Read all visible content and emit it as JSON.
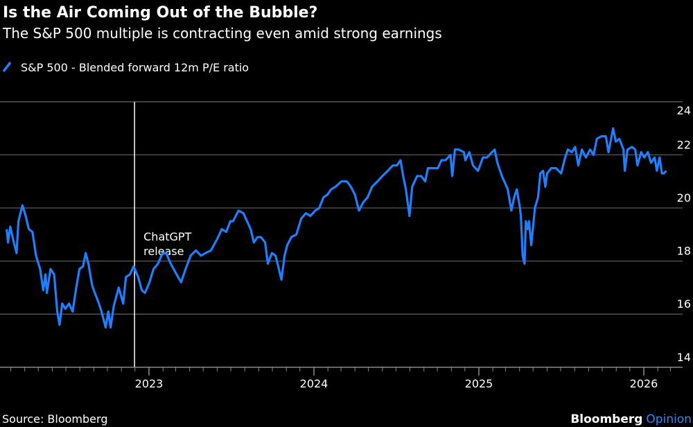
{
  "chart_data": {
    "type": "line",
    "title": "Is the Air Coming Out of the Bubble?",
    "subtitle": "The S&P 500 multiple is contracting even amid strong earnings",
    "ylim": [
      14,
      24
    ],
    "yticks": [
      "14",
      "16",
      "18",
      "20",
      "22",
      "24"
    ],
    "xticks": [
      "2023",
      "2024",
      "2025",
      "2026"
    ],
    "grid": true,
    "y_axis_side": "right",
    "legend_placement": "top-left",
    "annotation": {
      "date": "2022-11-30",
      "label_line1": "ChatGPT",
      "label_line2": "release"
    },
    "series": [
      {
        "name": "S&P 500 - Blended forward 12m P/E ratio",
        "color": "#1f7fff",
        "points": [
          [
            "2022-02-20",
            19.2
          ],
          [
            "2022-02-23",
            18.7
          ],
          [
            "2022-02-28",
            19.3
          ],
          [
            "2022-03-08",
            18.7
          ],
          [
            "2022-03-14",
            18.3
          ],
          [
            "2022-03-18",
            19.5
          ],
          [
            "2022-03-27",
            20.1
          ],
          [
            "2022-04-03",
            19.7
          ],
          [
            "2022-04-10",
            19.2
          ],
          [
            "2022-04-18",
            19.1
          ],
          [
            "2022-04-26",
            18.2
          ],
          [
            "2022-05-05",
            17.7
          ],
          [
            "2022-05-12",
            16.9
          ],
          [
            "2022-05-17",
            17.5
          ],
          [
            "2022-05-20",
            16.8
          ],
          [
            "2022-05-28",
            17.7
          ],
          [
            "2022-06-05",
            17.5
          ],
          [
            "2022-06-12",
            16.1
          ],
          [
            "2022-06-17",
            15.6
          ],
          [
            "2022-06-23",
            16.4
          ],
          [
            "2022-06-30",
            16.2
          ],
          [
            "2022-07-08",
            16.4
          ],
          [
            "2022-07-16",
            16.1
          ],
          [
            "2022-07-23",
            16.9
          ],
          [
            "2022-07-31",
            17.7
          ],
          [
            "2022-08-08",
            17.8
          ],
          [
            "2022-08-14",
            18.3
          ],
          [
            "2022-08-20",
            17.9
          ],
          [
            "2022-08-28",
            17.1
          ],
          [
            "2022-09-03",
            16.8
          ],
          [
            "2022-09-10",
            16.5
          ],
          [
            "2022-09-18",
            16.1
          ],
          [
            "2022-09-27",
            15.5
          ],
          [
            "2022-10-03",
            16.1
          ],
          [
            "2022-10-08",
            15.5
          ],
          [
            "2022-10-15",
            16.3
          ],
          [
            "2022-10-26",
            17.0
          ],
          [
            "2022-11-05",
            16.4
          ],
          [
            "2022-11-11",
            17.4
          ],
          [
            "2022-11-20",
            17.5
          ],
          [
            "2022-11-28",
            17.8
          ],
          [
            "2022-12-08",
            17.4
          ],
          [
            "2022-12-16",
            16.9
          ],
          [
            "2022-12-23",
            16.8
          ],
          [
            "2023-01-02",
            17.2
          ],
          [
            "2023-01-11",
            17.7
          ],
          [
            "2023-01-21",
            17.9
          ],
          [
            "2023-01-31",
            18.3
          ],
          [
            "2023-02-08",
            18.3
          ],
          [
            "2023-02-18",
            17.9
          ],
          [
            "2023-03-03",
            17.5
          ],
          [
            "2023-03-13",
            17.2
          ],
          [
            "2023-03-23",
            17.7
          ],
          [
            "2023-04-03",
            18.2
          ],
          [
            "2023-04-15",
            18.4
          ],
          [
            "2023-04-26",
            18.2
          ],
          [
            "2023-05-06",
            18.3
          ],
          [
            "2023-05-18",
            18.4
          ],
          [
            "2023-05-31",
            18.8
          ],
          [
            "2023-06-11",
            19.2
          ],
          [
            "2023-06-21",
            19.1
          ],
          [
            "2023-06-30",
            19.5
          ],
          [
            "2023-07-06",
            19.5
          ],
          [
            "2023-07-18",
            19.9
          ],
          [
            "2023-07-29",
            19.8
          ],
          [
            "2023-08-06",
            19.5
          ],
          [
            "2023-08-14",
            19.2
          ],
          [
            "2023-08-21",
            18.7
          ],
          [
            "2023-08-29",
            18.9
          ],
          [
            "2023-09-06",
            18.9
          ],
          [
            "2023-09-15",
            18.7
          ],
          [
            "2023-09-21",
            17.9
          ],
          [
            "2023-09-30",
            18.3
          ],
          [
            "2023-10-08",
            18.2
          ],
          [
            "2023-10-14",
            17.8
          ],
          [
            "2023-10-21",
            17.3
          ],
          [
            "2023-10-28",
            18.2
          ],
          [
            "2023-11-03",
            18.6
          ],
          [
            "2023-11-12",
            18.9
          ],
          [
            "2023-11-23",
            19.0
          ],
          [
            "2023-12-04",
            19.6
          ],
          [
            "2023-12-14",
            19.8
          ],
          [
            "2023-12-24",
            19.7
          ],
          [
            "2024-01-04",
            19.9
          ],
          [
            "2024-01-13",
            20.0
          ],
          [
            "2024-01-22",
            20.4
          ],
          [
            "2024-01-31",
            20.5
          ],
          [
            "2024-02-08",
            20.7
          ],
          [
            "2024-02-18",
            20.8
          ],
          [
            "2024-03-02",
            21.0
          ],
          [
            "2024-03-14",
            21.0
          ],
          [
            "2024-03-23",
            20.8
          ],
          [
            "2024-04-01",
            20.5
          ],
          [
            "2024-04-10",
            19.9
          ],
          [
            "2024-04-19",
            20.2
          ],
          [
            "2024-04-29",
            20.4
          ],
          [
            "2024-05-09",
            20.8
          ],
          [
            "2024-05-21",
            21.0
          ],
          [
            "2024-06-01",
            21.2
          ],
          [
            "2024-06-13",
            21.4
          ],
          [
            "2024-06-24",
            21.6
          ],
          [
            "2024-07-03",
            21.6
          ],
          [
            "2024-07-11",
            21.8
          ],
          [
            "2024-07-17",
            21.2
          ],
          [
            "2024-07-23",
            20.7
          ],
          [
            "2024-07-31",
            19.7
          ],
          [
            "2024-08-06",
            20.8
          ],
          [
            "2024-08-17",
            21.2
          ],
          [
            "2024-08-26",
            21.2
          ],
          [
            "2024-09-04",
            21.0
          ],
          [
            "2024-09-10",
            21.5
          ],
          [
            "2024-09-21",
            21.5
          ],
          [
            "2024-10-02",
            21.5
          ],
          [
            "2024-10-10",
            21.8
          ],
          [
            "2024-10-19",
            21.8
          ],
          [
            "2024-10-30",
            22.0
          ],
          [
            "2024-11-03",
            21.2
          ],
          [
            "2024-11-09",
            22.2
          ],
          [
            "2024-11-17",
            22.2
          ],
          [
            "2024-11-29",
            22.1
          ],
          [
            "2024-12-02",
            21.8
          ],
          [
            "2024-12-11",
            22.1
          ],
          [
            "2024-12-19",
            21.6
          ],
          [
            "2024-12-30",
            21.4
          ],
          [
            "2025-01-10",
            21.9
          ],
          [
            "2025-01-19",
            21.9
          ],
          [
            "2025-01-30",
            22.1
          ],
          [
            "2025-02-05",
            22.2
          ],
          [
            "2025-02-11",
            21.7
          ],
          [
            "2025-02-21",
            21.2
          ],
          [
            "2025-03-06",
            20.7
          ],
          [
            "2025-03-14",
            19.9
          ],
          [
            "2025-03-20",
            20.4
          ],
          [
            "2025-03-26",
            20.7
          ],
          [
            "2025-04-02",
            20.0
          ],
          [
            "2025-04-04",
            19.7
          ],
          [
            "2025-04-08",
            18.2
          ],
          [
            "2025-04-12",
            17.9
          ],
          [
            "2025-04-15",
            19.5
          ],
          [
            "2025-04-19",
            19.2
          ],
          [
            "2025-04-22",
            19.5
          ],
          [
            "2025-04-27",
            18.6
          ],
          [
            "2025-05-05",
            20.0
          ],
          [
            "2025-05-12",
            20.4
          ],
          [
            "2025-05-17",
            21.3
          ],
          [
            "2025-05-23",
            21.4
          ],
          [
            "2025-05-28",
            20.8
          ],
          [
            "2025-06-01",
            21.3
          ],
          [
            "2025-06-10",
            21.5
          ],
          [
            "2025-06-21",
            21.5
          ],
          [
            "2025-07-02",
            21.3
          ],
          [
            "2025-07-11",
            21.9
          ],
          [
            "2025-07-17",
            22.2
          ],
          [
            "2025-07-26",
            22.1
          ],
          [
            "2025-08-02",
            22.3
          ],
          [
            "2025-08-09",
            21.6
          ],
          [
            "2025-08-17",
            22.2
          ],
          [
            "2025-08-26",
            21.9
          ],
          [
            "2025-09-04",
            22.2
          ],
          [
            "2025-09-12",
            22.0
          ],
          [
            "2025-09-19",
            22.6
          ],
          [
            "2025-09-29",
            22.7
          ],
          [
            "2025-10-09",
            22.7
          ],
          [
            "2025-10-15",
            22.1
          ],
          [
            "2025-10-25",
            23.0
          ],
          [
            "2025-10-31",
            22.5
          ],
          [
            "2025-11-08",
            22.6
          ],
          [
            "2025-11-17",
            22.2
          ],
          [
            "2025-11-20",
            21.4
          ],
          [
            "2025-11-26",
            22.2
          ],
          [
            "2025-12-06",
            22.3
          ],
          [
            "2025-12-13",
            22.2
          ],
          [
            "2025-12-18",
            21.6
          ],
          [
            "2025-12-26",
            22.1
          ],
          [
            "2026-01-02",
            21.9
          ],
          [
            "2026-01-10",
            22.1
          ],
          [
            "2026-01-17",
            21.7
          ],
          [
            "2026-01-25",
            21.9
          ],
          [
            "2026-01-30",
            21.4
          ],
          [
            "2026-02-05",
            21.9
          ],
          [
            "2026-02-10",
            21.3
          ],
          [
            "2026-02-14",
            21.3
          ],
          [
            "2026-02-20",
            21.4
          ]
        ]
      }
    ]
  },
  "footer": {
    "source": "Source: Bloomberg",
    "brand": "Bloomberg",
    "brand_suffix": "Opinion"
  },
  "colors": {
    "background": "#000000",
    "line": "#1f7fff",
    "grid": "#5a5a5a",
    "brand_accent": "#2f86ff"
  }
}
